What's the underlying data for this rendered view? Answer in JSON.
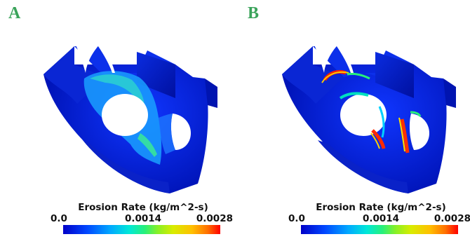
{
  "panels": [
    {
      "label": "A",
      "legend": {
        "title": "Erosion Rate (kg/m^2-s)",
        "ticks": [
          "0.0",
          "0.0014",
          "0.0028"
        ]
      }
    },
    {
      "label": "B",
      "legend": {
        "title": "Erosion Rate (kg/m^2-s)",
        "ticks": [
          "0.0",
          "0.0014",
          "0.0028"
        ]
      }
    }
  ],
  "colors": {
    "label_green": "#3aa35a",
    "part_blue": "#0a24d8",
    "scale": [
      "#0000c8",
      "#0046ff",
      "#00a8ff",
      "#00e8d8",
      "#28f07a",
      "#86f028",
      "#d8ec00",
      "#ffc000",
      "#ff7000",
      "#ff0000"
    ]
  }
}
